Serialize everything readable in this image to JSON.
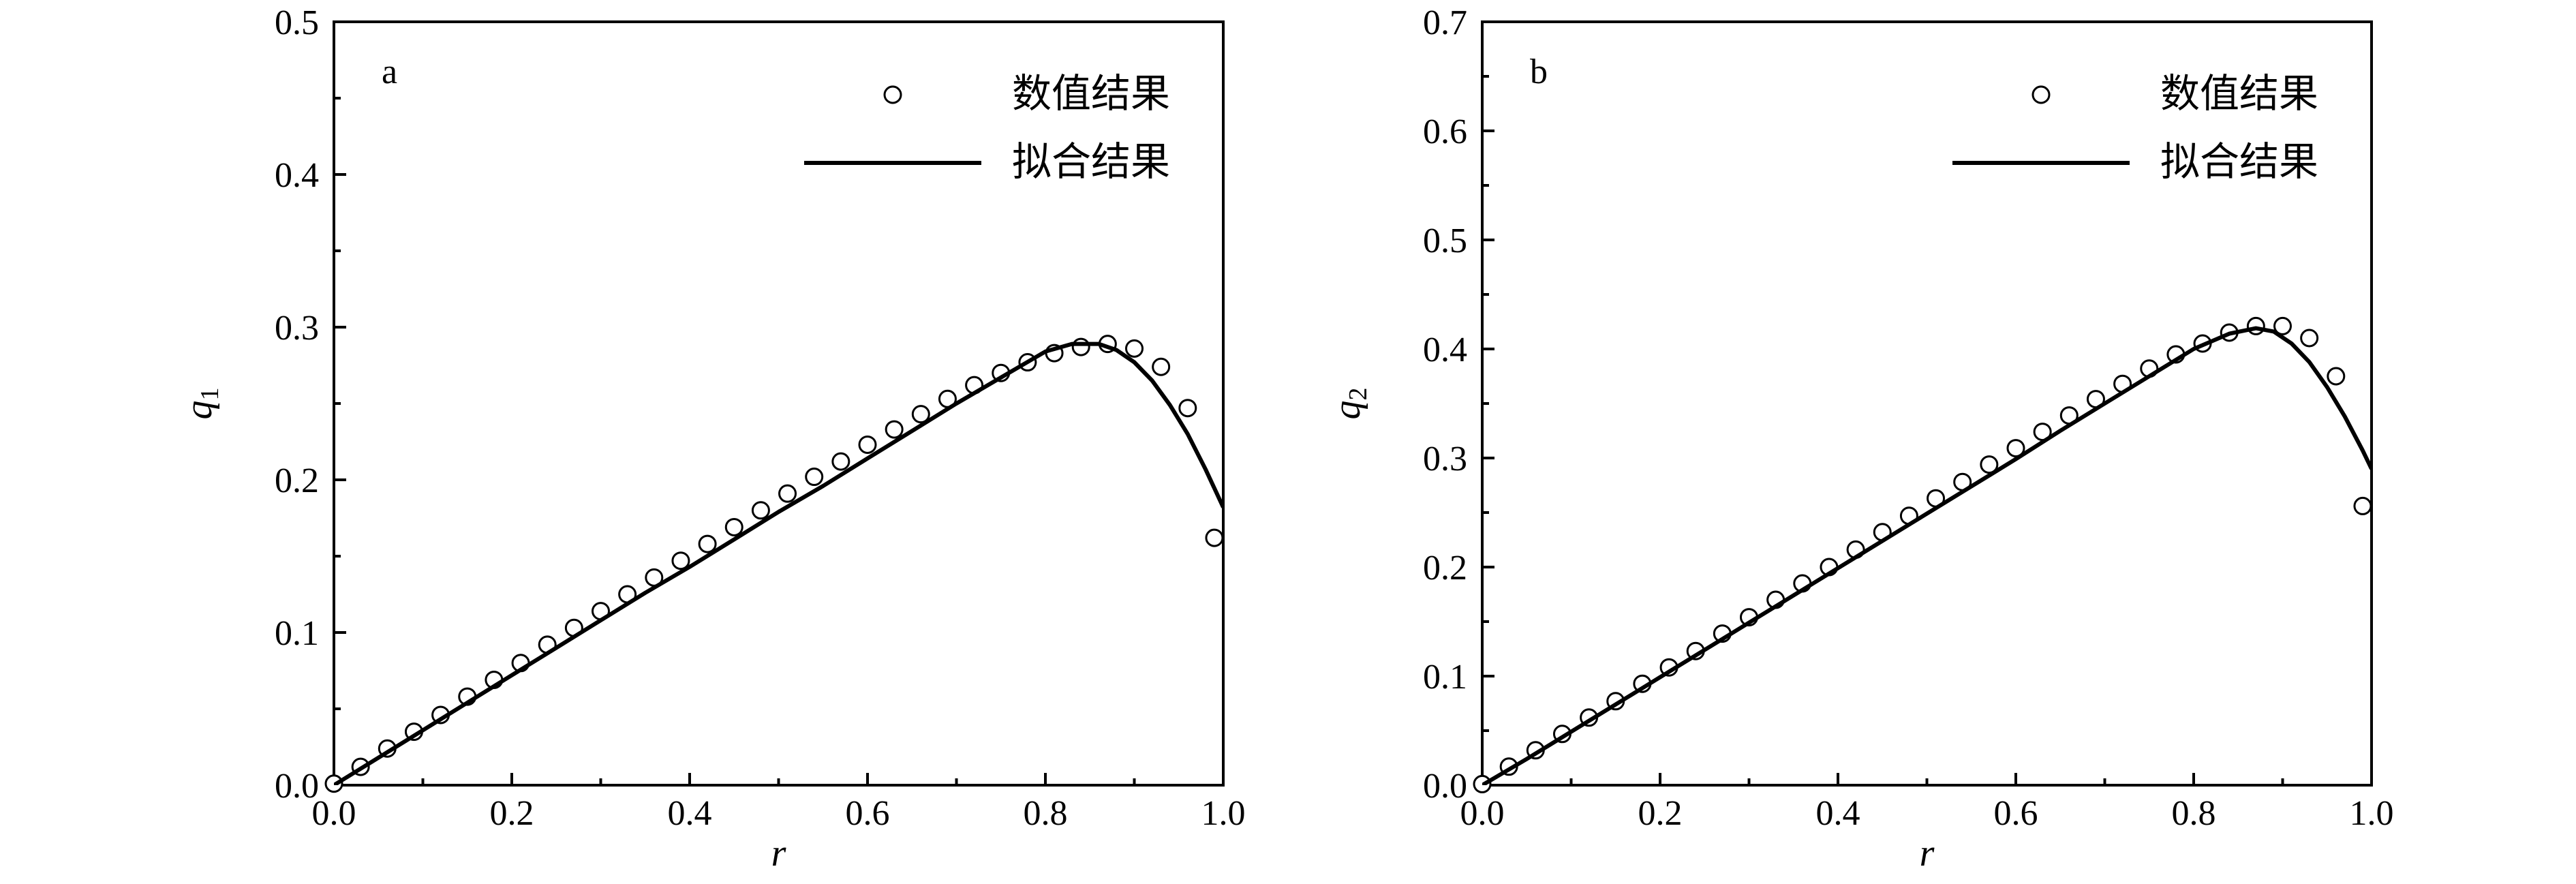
{
  "chart_data": [
    {
      "type": "line",
      "panel_label": "a",
      "xlabel": "r",
      "ylabel": "q",
      "ylabel_subscript": "1",
      "xlim": [
        0.0,
        1.0
      ],
      "ylim": [
        0.0,
        0.5
      ],
      "x_ticks": [
        "0.0",
        "0.2",
        "0.4",
        "0.6",
        "0.8",
        "1.0"
      ],
      "y_ticks": [
        "0.0",
        "0.1",
        "0.2",
        "0.3",
        "0.4",
        "0.5"
      ],
      "grid": false,
      "legend_position": "top-right",
      "series": [
        {
          "name": "数值结果",
          "style": "open-circle",
          "x": [
            0.0,
            0.03,
            0.06,
            0.09,
            0.12,
            0.15,
            0.18,
            0.21,
            0.24,
            0.27,
            0.3,
            0.33,
            0.36,
            0.39,
            0.42,
            0.45,
            0.48,
            0.51,
            0.54,
            0.57,
            0.6,
            0.63,
            0.66,
            0.69,
            0.72,
            0.75,
            0.78,
            0.81,
            0.84,
            0.87,
            0.9,
            0.93,
            0.96,
            0.99
          ],
          "y": [
            0.001,
            0.012,
            0.024,
            0.035,
            0.046,
            0.058,
            0.069,
            0.08,
            0.092,
            0.103,
            0.114,
            0.125,
            0.136,
            0.147,
            0.158,
            0.169,
            0.18,
            0.191,
            0.202,
            0.212,
            0.223,
            0.233,
            0.243,
            0.253,
            0.262,
            0.27,
            0.277,
            0.283,
            0.287,
            0.289,
            0.286,
            0.274,
            0.247,
            0.162
          ]
        },
        {
          "name": "拟合结果",
          "style": "solid-line",
          "x": [
            0.0,
            0.05,
            0.1,
            0.15,
            0.2,
            0.25,
            0.3,
            0.35,
            0.4,
            0.45,
            0.5,
            0.55,
            0.6,
            0.65,
            0.7,
            0.75,
            0.8,
            0.83,
            0.86,
            0.88,
            0.9,
            0.92,
            0.94,
            0.96,
            0.98,
            1.0
          ],
          "y": [
            0.0,
            0.018,
            0.036,
            0.054,
            0.072,
            0.09,
            0.108,
            0.126,
            0.143,
            0.161,
            0.179,
            0.196,
            0.214,
            0.232,
            0.25,
            0.267,
            0.284,
            0.289,
            0.289,
            0.285,
            0.277,
            0.265,
            0.249,
            0.23,
            0.207,
            0.182
          ]
        }
      ]
    },
    {
      "type": "line",
      "panel_label": "b",
      "xlabel": "r",
      "ylabel": "q",
      "ylabel_subscript": "2",
      "xlim": [
        0.0,
        1.0
      ],
      "ylim": [
        0.0,
        0.7
      ],
      "x_ticks": [
        "0.0",
        "0.2",
        "0.4",
        "0.6",
        "0.8",
        "1.0"
      ],
      "y_ticks": [
        "0.0",
        "0.1",
        "0.2",
        "0.3",
        "0.4",
        "0.5",
        "0.6",
        "0.7"
      ],
      "grid": false,
      "legend_position": "top-right",
      "series": [
        {
          "name": "数值结果",
          "style": "open-circle",
          "x": [
            0.0,
            0.03,
            0.06,
            0.09,
            0.12,
            0.15,
            0.18,
            0.21,
            0.24,
            0.27,
            0.3,
            0.33,
            0.36,
            0.39,
            0.42,
            0.45,
            0.48,
            0.51,
            0.54,
            0.57,
            0.6,
            0.63,
            0.66,
            0.69,
            0.72,
            0.75,
            0.78,
            0.81,
            0.84,
            0.87,
            0.9,
            0.93,
            0.96,
            0.99
          ],
          "y": [
            0.001,
            0.017,
            0.032,
            0.047,
            0.062,
            0.077,
            0.093,
            0.108,
            0.123,
            0.139,
            0.154,
            0.17,
            0.185,
            0.2,
            0.216,
            0.232,
            0.247,
            0.263,
            0.278,
            0.294,
            0.309,
            0.324,
            0.339,
            0.354,
            0.368,
            0.382,
            0.395,
            0.405,
            0.415,
            0.421,
            0.421,
            0.41,
            0.375,
            0.256
          ]
        },
        {
          "name": "拟合结果",
          "style": "solid-line",
          "x": [
            0.0,
            0.05,
            0.1,
            0.15,
            0.2,
            0.25,
            0.3,
            0.35,
            0.4,
            0.45,
            0.5,
            0.55,
            0.6,
            0.65,
            0.7,
            0.75,
            0.8,
            0.84,
            0.87,
            0.89,
            0.91,
            0.93,
            0.95,
            0.97,
            0.99,
            1.0
          ],
          "y": [
            0.0,
            0.024,
            0.049,
            0.074,
            0.099,
            0.124,
            0.149,
            0.174,
            0.199,
            0.224,
            0.249,
            0.274,
            0.299,
            0.325,
            0.35,
            0.375,
            0.4,
            0.414,
            0.419,
            0.416,
            0.405,
            0.388,
            0.365,
            0.338,
            0.307,
            0.29
          ]
        }
      ]
    }
  ]
}
